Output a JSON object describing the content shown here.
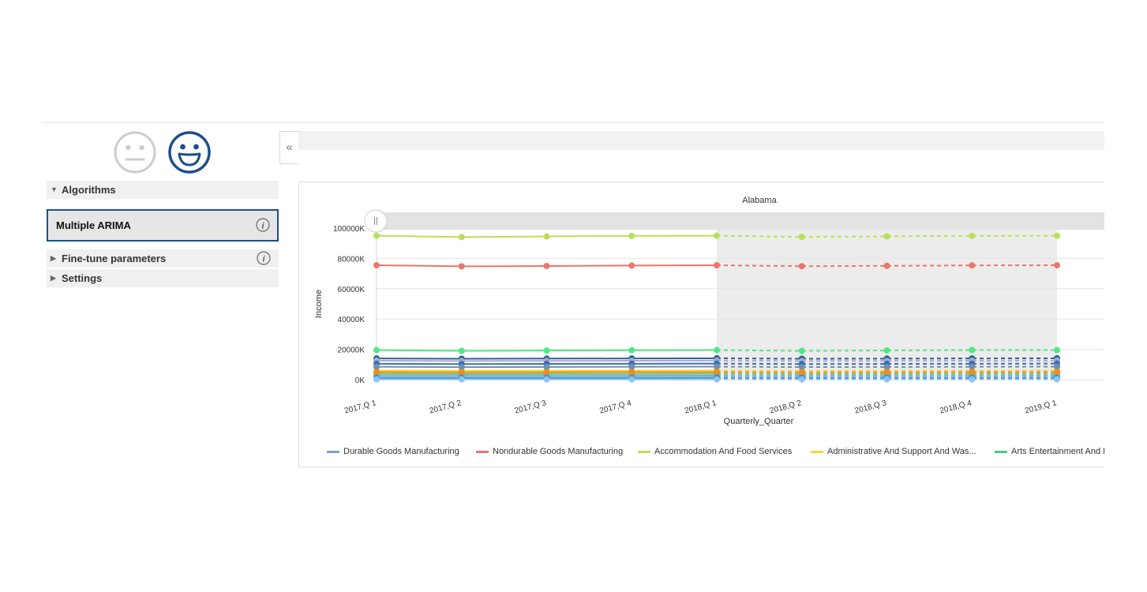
{
  "sidebar": {
    "faces": [
      {
        "name": "neutral-face-icon",
        "color": "#cccccc"
      },
      {
        "name": "happy-face-icon",
        "color": "#1c4f8c"
      }
    ],
    "algorithms_label": "Algorithms",
    "selected_algorithm": "Multiple ARIMA",
    "fine_tune_label": "Fine-tune parameters",
    "settings_label": "Settings"
  },
  "toolbar": {
    "collapse_icon": "double-chevron-left-icon",
    "collapse_glyph": "«"
  },
  "chart_data": {
    "type": "line",
    "title": "Alabama",
    "xlabel": "Quarterly_Quarter",
    "ylabel": "Income",
    "categories": [
      "2017,Q 1",
      "2017,Q 2",
      "2017,Q 3",
      "2017,Q 4",
      "2018,Q 1",
      "2018,Q 2",
      "2018,Q 3",
      "2018,Q 4",
      "2019,Q 1"
    ],
    "forecast_start_index": 4,
    "ylim": [
      0,
      100000
    ],
    "yticks": [
      "0K",
      "20000K",
      "40000K",
      "60000K",
      "80000K",
      "100000K"
    ],
    "grid": true,
    "legend_position": "bottom",
    "series": [
      {
        "name": "Durable Goods Manufacturing",
        "color": "#7fa1c4",
        "values": [
          2500,
          2450,
          2480,
          2500,
          2520,
          2450,
          2480,
          2500,
          2520
        ]
      },
      {
        "name": "Nondurable Goods Manufacturing",
        "color": "#e8776b",
        "values": [
          75500,
          74800,
          75000,
          75300,
          75500,
          74900,
          75100,
          75400,
          75500
        ]
      },
      {
        "name": "Accommodation And Food Services",
        "color": "#b9df5a",
        "values": [
          95000,
          94100,
          94500,
          94900,
          95000,
          94200,
          94600,
          94900,
          95000
        ]
      },
      {
        "name": "Administrative And Support And Was...",
        "color": "#f7d634",
        "values": [
          6000,
          5900,
          5950,
          6000,
          6050,
          5900,
          5950,
          6000,
          6050
        ]
      },
      {
        "name": "Arts Entertainment And R",
        "color": "#4cc98b",
        "values": [
          3800,
          3700,
          3750,
          3800,
          3850,
          3700,
          3750,
          3800,
          3850
        ]
      },
      {
        "name": "",
        "color": "#4ee884",
        "values": [
          19500,
          19000,
          19200,
          19400,
          19500,
          19000,
          19300,
          19500,
          19500
        ]
      },
      {
        "name": "",
        "color": "#2e5f94",
        "values": [
          14000,
          13800,
          13900,
          14000,
          14100,
          13800,
          13900,
          14000,
          14100
        ]
      },
      {
        "name": "",
        "color": "#a7a9d6",
        "values": [
          12500,
          12300,
          12400,
          12500,
          12600,
          12300,
          12400,
          12500,
          12600
        ]
      },
      {
        "name": "",
        "color": "#3c6fa5",
        "values": [
          10500,
          10300,
          10400,
          10500,
          10600,
          10300,
          10400,
          10500,
          10600
        ]
      },
      {
        "name": "",
        "color": "#6d8fb8",
        "values": [
          8500,
          8300,
          8400,
          8500,
          8600,
          8300,
          8400,
          8500,
          8600
        ]
      },
      {
        "name": "",
        "color": "#f08c1e",
        "values": [
          5000,
          4900,
          4950,
          5000,
          5050,
          4900,
          4950,
          5000,
          5050
        ]
      },
      {
        "name": "",
        "color": "#2d8fd8",
        "values": [
          1200,
          1150,
          1180,
          1200,
          1220,
          1150,
          1180,
          1200,
          1220
        ]
      },
      {
        "name": "",
        "color": "#8fc3f2",
        "values": [
          200,
          180,
          190,
          200,
          210,
          180,
          190,
          200,
          210
        ]
      }
    ]
  }
}
